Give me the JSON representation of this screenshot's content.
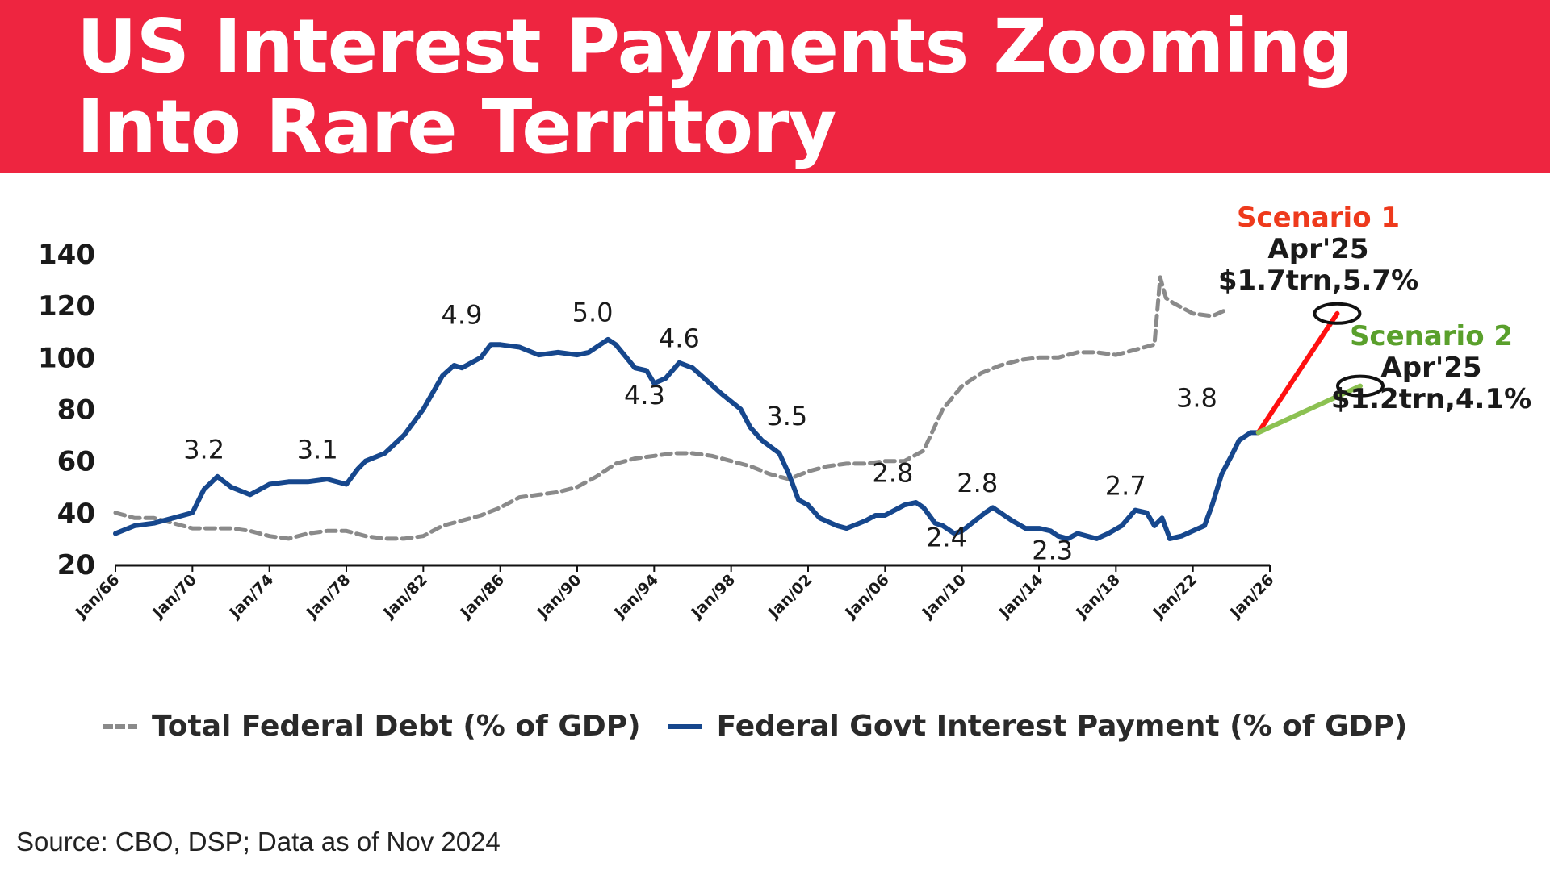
{
  "header": {
    "title": "US Interest Payments Zooming\nInto Rare Territory",
    "background_color": "#ee2540"
  },
  "chart_data": {
    "type": "line",
    "yticks": [
      20,
      40,
      60,
      80,
      100,
      120,
      140
    ],
    "ylim": [
      20,
      140
    ],
    "xlim": [
      1966,
      2026
    ],
    "xticks": [
      "Jan/66",
      "Jan/70",
      "Jan/74",
      "Jan/78",
      "Jan/82",
      "Jan/86",
      "Jan/90",
      "Jan/94",
      "Jan/98",
      "Jan/02",
      "Jan/06",
      "Jan/10",
      "Jan/14",
      "Jan/18",
      "Jan/22",
      "Jan/26"
    ],
    "grid": false,
    "legend": "bottom",
    "series": [
      {
        "name": "Total Federal Debt (% of GDP)",
        "style": "dashed",
        "color": "#8a8a8a",
        "points": [
          [
            1966,
            40
          ],
          [
            1967,
            38
          ],
          [
            1968,
            38
          ],
          [
            1969,
            36
          ],
          [
            1970,
            34
          ],
          [
            1971,
            34
          ],
          [
            1972,
            34
          ],
          [
            1973,
            33
          ],
          [
            1974,
            31
          ],
          [
            1975,
            30
          ],
          [
            1976,
            32
          ],
          [
            1977,
            33
          ],
          [
            1978,
            33
          ],
          [
            1979,
            31
          ],
          [
            1980,
            30
          ],
          [
            1981,
            30
          ],
          [
            1982,
            31
          ],
          [
            1983,
            35
          ],
          [
            1984,
            37
          ],
          [
            1985,
            39
          ],
          [
            1986,
            42
          ],
          [
            1987,
            46
          ],
          [
            1988,
            47
          ],
          [
            1989,
            48
          ],
          [
            1990,
            50
          ],
          [
            1991,
            54
          ],
          [
            1992,
            59
          ],
          [
            1993,
            61
          ],
          [
            1994,
            62
          ],
          [
            1995,
            63
          ],
          [
            1996,
            63
          ],
          [
            1997,
            62
          ],
          [
            1998,
            60
          ],
          [
            1999,
            58
          ],
          [
            2000,
            55
          ],
          [
            2001,
            53
          ],
          [
            2002,
            56
          ],
          [
            2003,
            58
          ],
          [
            2004,
            59
          ],
          [
            2005,
            59
          ],
          [
            2006,
            60
          ],
          [
            2007,
            60
          ],
          [
            2008,
            64
          ],
          [
            2009,
            80
          ],
          [
            2010,
            89
          ],
          [
            2011,
            94
          ],
          [
            2012,
            97
          ],
          [
            2013,
            99
          ],
          [
            2014,
            100
          ],
          [
            2015,
            100
          ],
          [
            2016,
            102
          ],
          [
            2017,
            102
          ],
          [
            2018,
            101
          ],
          [
            2019,
            103
          ],
          [
            2020,
            105
          ],
          [
            2020.3,
            131
          ],
          [
            2020.6,
            123
          ],
          [
            2021,
            121
          ],
          [
            2022,
            117
          ],
          [
            2023,
            116
          ],
          [
            2023.6,
            118
          ]
        ]
      },
      {
        "name": "Federal Govt Interest Payment (% of GDP)",
        "style": "solid",
        "color": "#16478d",
        "points": [
          [
            1966,
            32
          ],
          [
            1967,
            35
          ],
          [
            1968,
            36
          ],
          [
            1969,
            38
          ],
          [
            1970,
            40
          ],
          [
            1970.6,
            49
          ],
          [
            1971.3,
            54
          ],
          [
            1972,
            50
          ],
          [
            1973,
            47
          ],
          [
            1974,
            51
          ],
          [
            1975,
            52
          ],
          [
            1976,
            52
          ],
          [
            1977,
            53
          ],
          [
            1978,
            51
          ],
          [
            1978.6,
            57
          ],
          [
            1979,
            60
          ],
          [
            1980,
            63
          ],
          [
            1981,
            70
          ],
          [
            1982,
            80
          ],
          [
            1983,
            93
          ],
          [
            1983.6,
            97
          ],
          [
            1984,
            96
          ],
          [
            1985,
            100
          ],
          [
            1985.5,
            105
          ],
          [
            1986,
            105
          ],
          [
            1987,
            104
          ],
          [
            1988,
            101
          ],
          [
            1989,
            102
          ],
          [
            1990,
            101
          ],
          [
            1990.6,
            102
          ],
          [
            1991,
            104
          ],
          [
            1991.6,
            107
          ],
          [
            1992,
            105
          ],
          [
            1993,
            96
          ],
          [
            1993.6,
            95
          ],
          [
            1994,
            90
          ],
          [
            1994.6,
            92
          ],
          [
            1995.3,
            98
          ],
          [
            1996,
            96
          ],
          [
            1996.6,
            92
          ],
          [
            1997.5,
            86
          ],
          [
            1998.5,
            80
          ],
          [
            1999,
            73
          ],
          [
            1999.6,
            68
          ],
          [
            2000.5,
            63
          ],
          [
            2001,
            55
          ],
          [
            2001.5,
            45
          ],
          [
            2002,
            43
          ],
          [
            2002.6,
            38
          ],
          [
            2003.5,
            35
          ],
          [
            2004,
            34
          ],
          [
            2005,
            37
          ],
          [
            2005.5,
            39
          ],
          [
            2006,
            39
          ],
          [
            2007,
            43
          ],
          [
            2007.6,
            44
          ],
          [
            2008,
            42
          ],
          [
            2008.6,
            36
          ],
          [
            2009,
            35
          ],
          [
            2009.6,
            32
          ],
          [
            2010,
            33
          ],
          [
            2011.2,
            40
          ],
          [
            2011.6,
            42
          ],
          [
            2012,
            40
          ],
          [
            2012.6,
            37
          ],
          [
            2013.3,
            34
          ],
          [
            2014,
            34
          ],
          [
            2014.6,
            33
          ],
          [
            2015,
            31
          ],
          [
            2015.5,
            30
          ],
          [
            2016,
            32
          ],
          [
            2017,
            30
          ],
          [
            2017.6,
            32
          ],
          [
            2018.3,
            35
          ],
          [
            2019,
            41
          ],
          [
            2019.6,
            40
          ],
          [
            2020,
            35
          ],
          [
            2020.4,
            38
          ],
          [
            2020.8,
            30
          ],
          [
            2021.4,
            31
          ],
          [
            2022,
            33
          ],
          [
            2022.6,
            35
          ],
          [
            2023,
            43
          ],
          [
            2023.5,
            55
          ],
          [
            2024,
            62
          ],
          [
            2024.4,
            68
          ],
          [
            2025,
            71
          ],
          [
            2025.4,
            71
          ]
        ]
      }
    ],
    "projections": [
      {
        "from": [
          2025.4,
          71
        ],
        "to": [
          2029.5,
          117
        ],
        "color": "#ff1010"
      },
      {
        "from": [
          2025.4,
          71
        ],
        "to": [
          2030.7,
          89
        ],
        "color": "#8cc152"
      }
    ],
    "annotations": [
      {
        "text": "3.2",
        "x": 1970.6,
        "y": 61
      },
      {
        "text": "3.1",
        "x": 1976.5,
        "y": 61
      },
      {
        "text": "4.9",
        "x": 1984.0,
        "y": 113
      },
      {
        "text": "5.0",
        "x": 1990.8,
        "y": 114
      },
      {
        "text": "4.6",
        "x": 1995.3,
        "y": 104
      },
      {
        "text": "4.3",
        "x": 1993.5,
        "y": 82
      },
      {
        "text": "3.5",
        "x": 2000.9,
        "y": 74
      },
      {
        "text": "2.8",
        "x": 2006.4,
        "y": 52
      },
      {
        "text": "2.8",
        "x": 2010.8,
        "y": 48
      },
      {
        "text": "2.4",
        "x": 2009.2,
        "y": 27
      },
      {
        "text": "2.3",
        "x": 2014.7,
        "y": 22
      },
      {
        "text": "2.7",
        "x": 2018.5,
        "y": 47
      },
      {
        "text": "3.8",
        "x": 2022.2,
        "y": 81
      }
    ],
    "scenarios": [
      {
        "title": "Scenario 1",
        "date": "Apr'25",
        "value": "$1.7trn,5.7%",
        "color": "#ee3a1c"
      },
      {
        "title": "Scenario 2",
        "date": "Apr'25",
        "value": "$1.2trn,4.1%",
        "color": "#5aa02c"
      }
    ]
  },
  "legend": {
    "debt_label": "Total Federal Debt (% of GDP)",
    "interest_label": "Federal Govt Interest Payment (% of GDP)"
  },
  "footer": {
    "source": "Source: CBO, DSP; Data as of Nov 2024"
  }
}
